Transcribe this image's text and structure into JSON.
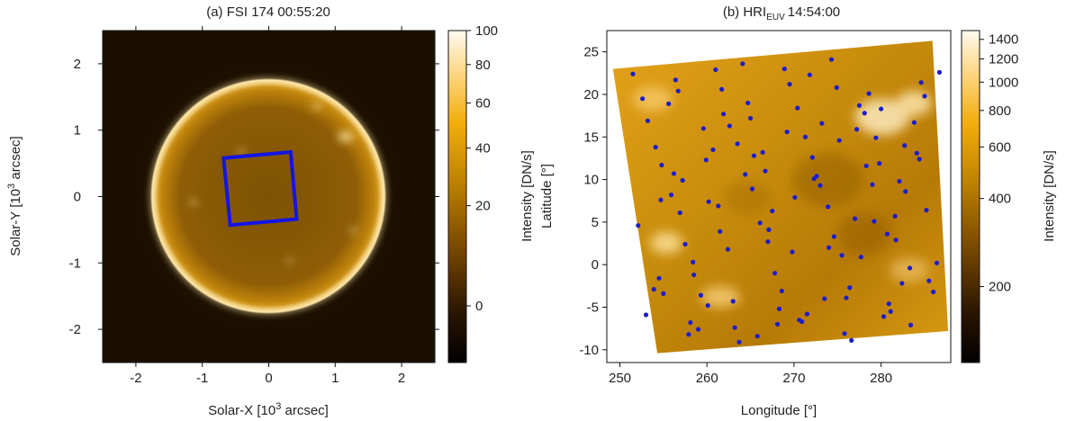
{
  "chart_data": [
    {
      "type": "heatmap",
      "panel": "a",
      "title": "(a) FSI 174 00:55:20",
      "xlabel": "Solar-X [10³ arcsec]",
      "ylabel": "Solar-Y [10³ arcsec]",
      "xlim": [
        -2.5,
        2.5
      ],
      "ylim": [
        -2.5,
        2.5
      ],
      "x_ticks": [
        -2,
        -1,
        0,
        1,
        2
      ],
      "y_ticks": [
        -2,
        -1,
        0,
        1,
        2
      ],
      "x_tick_labels": [
        "-2",
        "-1",
        "0",
        "1",
        "2"
      ],
      "y_tick_labels": [
        "-2",
        "-1",
        "0",
        "1",
        "2"
      ],
      "image_content": "solar disk, radius ~1.72e3 arcsec, bright limb",
      "hri_fov_box": {
        "color": "#1414e6",
        "corners": [
          [
            -0.68,
            0.58
          ],
          [
            0.33,
            0.67
          ],
          [
            0.42,
            -0.34
          ],
          [
            -0.58,
            -0.43
          ]
        ]
      },
      "colorbar": {
        "label": "Intensity [DN/s]",
        "scale": "nonlinear",
        "range": [
          -3,
          100
        ],
        "ticks": [
          0,
          20,
          40,
          60,
          80,
          100
        ],
        "tick_labels": [
          "0",
          "20",
          "40",
          "60",
          "80",
          "100"
        ]
      },
      "colormap": "sdoaia171 (black → orange → white)"
    },
    {
      "type": "scatter",
      "panel": "b",
      "title": "(b) HRI",
      "title_subscript": "EUV",
      "title_time": "14:54:00",
      "xlabel": "Longitude [°]",
      "ylabel": "Latitude [°]",
      "xlim": [
        248.5,
        288
      ],
      "ylim": [
        -11.5,
        27.5
      ],
      "x_ticks": [
        250,
        260,
        270,
        280
      ],
      "y_ticks": [
        -10,
        -5,
        0,
        5,
        10,
        15,
        20,
        25
      ],
      "x_tick_labels": [
        "250",
        "260",
        "270",
        "280"
      ],
      "y_tick_labels": [
        "-10",
        "-5",
        "0",
        "5",
        "10",
        "15",
        "20",
        "25"
      ],
      "image_footprint_lonlat": [
        [
          249.2,
          23.0
        ],
        [
          285.9,
          26.3
        ],
        [
          287.7,
          -7.8
        ],
        [
          254.3,
          -10.4
        ]
      ],
      "marker_color": "#1d1dcc",
      "series": [
        {
          "x": [
            251.5,
            253.2,
            254.8,
            256.9,
            258.4,
            260.1,
            261.7,
            263.5,
            265.2,
            267.0,
            268.6,
            270.4,
            272.1,
            273.9,
            275.5,
            277.2,
            279.0,
            280.7,
            282.4,
            284.1,
            252.6,
            254.1,
            255.9,
            257.5,
            259.3,
            261.0,
            262.6,
            264.4,
            266.1,
            267.8,
            269.5,
            271.3,
            273.0,
            274.6,
            276.4,
            278.1,
            279.8,
            281.6,
            283.3,
            285.0,
            253.0,
            254.7,
            256.4,
            258.1,
            259.9,
            261.5,
            263.2,
            265.0,
            266.7,
            268.3,
            270.1,
            271.8,
            273.5,
            275.2,
            277.0,
            278.6,
            280.3,
            282.1,
            283.8,
            285.5,
            252.1,
            253.9,
            255.6,
            257.2,
            259.0,
            260.7,
            262.4,
            264.1,
            265.8,
            267.5,
            269.2,
            270.9,
            272.6,
            274.3,
            276.0,
            277.7,
            279.4,
            281.1,
            282.8,
            284.6,
            254.5,
            256.2,
            257.9,
            259.6,
            261.3,
            263.0,
            264.7,
            266.4,
            268.1,
            269.8,
            271.5,
            273.2,
            274.9,
            276.6,
            278.3,
            280.0,
            281.7,
            283.4,
            285.2,
            286.4,
            255.0,
            256.7,
            258.5,
            260.2,
            261.9,
            263.7,
            265.4,
            267.1,
            268.9,
            270.6,
            272.3,
            274.0,
            275.8,
            277.5,
            279.2,
            280.9,
            282.7,
            284.4,
            286.0,
            286.7
          ],
          "y": [
            22.4,
            16.9,
            11.7,
            6.1,
            0.3,
            -4.8,
            20.6,
            14.2,
            8.9,
            2.7,
            -3.1,
            18.4,
            12.6,
            6.8,
            1.1,
            15.9,
            9.4,
            3.6,
            -2.2,
            13.1,
            19.5,
            13.8,
            8.2,
            2.4,
            -3.6,
            22.9,
            16.3,
            10.6,
            4.9,
            -1.0,
            21.2,
            15.0,
            9.3,
            3.3,
            -2.7,
            17.8,
            11.9,
            5.7,
            -0.4,
            19.8,
            -5.9,
            7.6,
            21.7,
            -6.8,
            12.3,
            3.9,
            -7.4,
            17.2,
            11.0,
            -5.2,
            7.9,
            22.3,
            -4.0,
            14.6,
            5.4,
            20.1,
            -6.1,
            9.8,
            16.7,
            -1.9,
            4.6,
            -2.9,
            18.9,
            9.9,
            -7.6,
            13.5,
            1.8,
            23.6,
            -8.4,
            6.3,
            15.6,
            -6.7,
            10.4,
            24.1,
            -3.9,
            0.9,
            14.9,
            -5.5,
            8.6,
            21.4,
            -1.6,
            10.7,
            -8.2,
            16.0,
            6.9,
            -4.3,
            19.0,
            13.2,
            -7.0,
            1.5,
            -5.8,
            16.6,
            20.8,
            -8.9,
            11.6,
            18.3,
            2.9,
            -7.1,
            6.4,
            0.2,
            -3.4,
            20.4,
            -1.2,
            7.4,
            17.7,
            -9.1,
            12.8,
            4.1,
            23.0,
            -6.5,
            10.1,
            2.0,
            -8.1,
            18.7,
            5.1,
            -4.6,
            14.0,
            12.4,
            -3.2,
            22.6
          ]
        }
      ],
      "colorbar": {
        "label": "Intensity [DN/s]",
        "scale": "log",
        "range": [
          110,
          1500
        ],
        "ticks": [
          200,
          400,
          600,
          800,
          1000,
          1200,
          1400
        ],
        "tick_labels": [
          "200",
          "400",
          "600",
          "800",
          "1000",
          "1200",
          "1400"
        ]
      },
      "colormap": "sdoaia171 (black → orange → white)"
    }
  ]
}
